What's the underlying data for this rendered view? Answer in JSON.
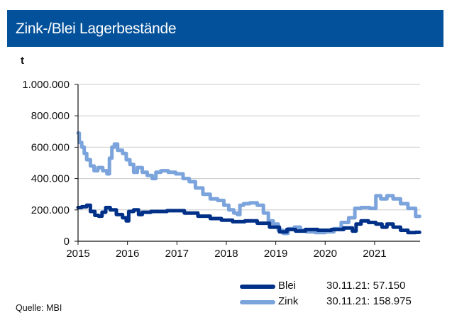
{
  "header": {
    "title": "Zink-/Blei Lagerbestände"
  },
  "source": "Quelle: MBI",
  "colors": {
    "header_bg": "#03519a",
    "blei": "#003087",
    "zink": "#7ba3dc",
    "grid": "#c8c8c8"
  },
  "chart_data": {
    "type": "line",
    "title": "Zink-/Blei Lagerbestände",
    "xlabel": "",
    "ylabel": "t",
    "xlim": [
      2015.0,
      2021.92
    ],
    "ylim": [
      0,
      1000000
    ],
    "grid": true,
    "legend_position": "bottom-right",
    "x_ticks": [
      2015,
      2016,
      2017,
      2018,
      2019,
      2020,
      2021
    ],
    "x_tick_labels": [
      "2015",
      "2016",
      "2017",
      "2018",
      "2019",
      "2020",
      "2021"
    ],
    "y_ticks": [
      0,
      200000,
      400000,
      600000,
      800000,
      1000000
    ],
    "y_tick_labels": [
      "0",
      "200.000",
      "400.000",
      "600.000",
      "800.000",
      "1.000.000"
    ],
    "series": [
      {
        "name": "Blei",
        "color": "#003087",
        "legend_text": "30.11.21: 57.150",
        "last_value": 57150,
        "x": [
          2015.0,
          2015.15,
          2015.2,
          2015.3,
          2015.38,
          2015.45,
          2015.52,
          2015.6,
          2015.7,
          2015.85,
          2015.95,
          2016.0,
          2016.05,
          2016.2,
          2016.25,
          2016.35,
          2016.6,
          2017.0,
          2017.3,
          2017.55,
          2017.8,
          2018.0,
          2018.25,
          2018.5,
          2018.75,
          2019.0,
          2019.15,
          2019.3,
          2019.5,
          2019.7,
          2020.0,
          2020.25,
          2020.5,
          2020.6,
          2020.65,
          2020.8,
          2020.95,
          2021.1,
          2021.2,
          2021.3,
          2021.45,
          2021.6,
          2021.75,
          2021.91
        ],
        "values": [
          215000,
          220000,
          230000,
          190000,
          165000,
          160000,
          185000,
          215000,
          200000,
          170000,
          150000,
          130000,
          190000,
          200000,
          170000,
          185000,
          190000,
          195000,
          180000,
          160000,
          145000,
          135000,
          125000,
          130000,
          115000,
          90000,
          60000,
          75000,
          65000,
          75000,
          70000,
          75000,
          85000,
          65000,
          110000,
          130000,
          120000,
          110000,
          90000,
          110000,
          90000,
          70000,
          55000,
          57150
        ]
      },
      {
        "name": "Zink",
        "color": "#7ba3dc",
        "legend_text": "30.11.21: 158.975",
        "last_value": 158975,
        "x": [
          2015.0,
          2015.05,
          2015.1,
          2015.15,
          2015.2,
          2015.3,
          2015.35,
          2015.45,
          2015.55,
          2015.62,
          2015.65,
          2015.72,
          2015.75,
          2015.85,
          2015.95,
          2016.0,
          2016.1,
          2016.15,
          2016.25,
          2016.35,
          2016.45,
          2016.55,
          2016.6,
          2016.75,
          2016.9,
          2017.05,
          2017.2,
          2017.3,
          2017.45,
          2017.6,
          2017.75,
          2017.9,
          2018.0,
          2018.1,
          2018.2,
          2018.25,
          2018.3,
          2018.4,
          2018.55,
          2018.7,
          2018.8,
          2018.9,
          2019.0,
          2019.1,
          2019.2,
          2019.3,
          2019.45,
          2019.55,
          2019.7,
          2019.9,
          2020.1,
          2020.25,
          2020.4,
          2020.55,
          2020.65,
          2020.8,
          2021.0,
          2021.05,
          2021.2,
          2021.3,
          2021.45,
          2021.6,
          2021.75,
          2021.91
        ],
        "values": [
          690000,
          630000,
          600000,
          560000,
          520000,
          480000,
          450000,
          470000,
          450000,
          430000,
          530000,
          600000,
          620000,
          580000,
          560000,
          520000,
          490000,
          440000,
          470000,
          440000,
          420000,
          400000,
          440000,
          450000,
          440000,
          430000,
          400000,
          380000,
          340000,
          300000,
          270000,
          260000,
          230000,
          200000,
          180000,
          170000,
          230000,
          240000,
          245000,
          230000,
          180000,
          130000,
          110000,
          70000,
          50000,
          80000,
          90000,
          70000,
          60000,
          55000,
          60000,
          80000,
          120000,
          150000,
          210000,
          215000,
          210000,
          290000,
          270000,
          290000,
          270000,
          240000,
          210000,
          158975
        ]
      }
    ]
  }
}
